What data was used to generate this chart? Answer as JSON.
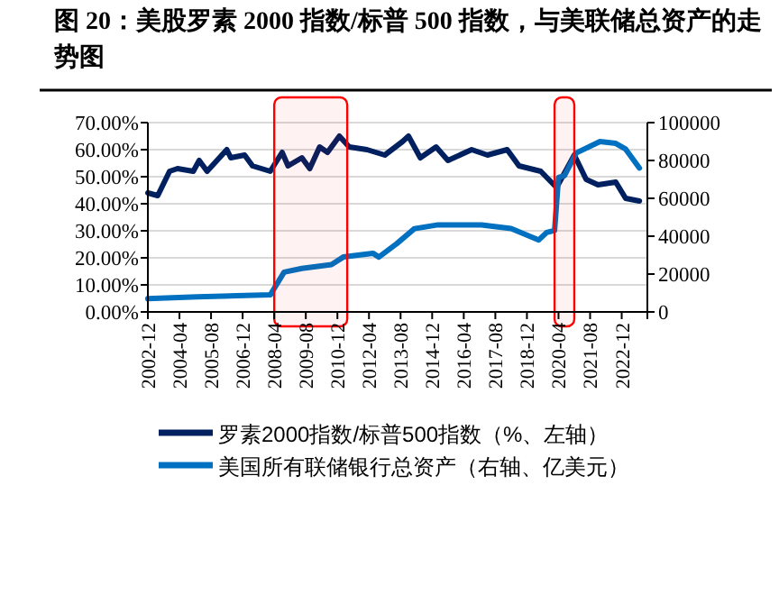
{
  "chart_data": {
    "type": "line",
    "title": "图 20：美股罗素 2000 指数/标普 500 指数，与美联储总资产的走势图",
    "grid": "y",
    "legend": "bottom",
    "line_style": "solid",
    "marker": "none",
    "xlim": [
      "2002-12",
      "2024-01"
    ],
    "xticks": [
      {
        "value": "2002-12",
        "label": "2002-12"
      },
      {
        "value": "2004-04",
        "label": "2004-04"
      },
      {
        "value": "2005-08",
        "label": "2005-08"
      },
      {
        "value": "2006-12",
        "label": "2006-12"
      },
      {
        "value": "2008-04",
        "label": "2008-04"
      },
      {
        "value": "2009-08",
        "label": "2009-08"
      },
      {
        "value": "2010-12",
        "label": "2010-12"
      },
      {
        "value": "2012-04",
        "label": "2012-04"
      },
      {
        "value": "2013-08",
        "label": "2013-08"
      },
      {
        "value": "2014-12",
        "label": "2014-12"
      },
      {
        "value": "2016-04",
        "label": "2016-04"
      },
      {
        "value": "2017-08",
        "label": "2017-08"
      },
      {
        "value": "2018-12",
        "label": "2018-12"
      },
      {
        "value": "2020-04",
        "label": "2020-04"
      },
      {
        "value": "2021-08",
        "label": "2021-08"
      },
      {
        "value": "2022-12",
        "label": "2022-12"
      }
    ],
    "ylim": [
      0,
      70
    ],
    "yticks": [
      {
        "value": 0,
        "label": "0.00%"
      },
      {
        "value": 10,
        "label": "10.00%"
      },
      {
        "value": 20,
        "label": "20.00%"
      },
      {
        "value": 30,
        "label": "30.00%"
      },
      {
        "value": 40,
        "label": "40.00%"
      },
      {
        "value": 50,
        "label": "50.00%"
      },
      {
        "value": 60,
        "label": "60.00%"
      },
      {
        "value": 70,
        "label": "70.00%"
      }
    ],
    "y2lim": [
      0,
      100000
    ],
    "y2ticks": [
      0,
      20000,
      40000,
      60000,
      80000,
      100000
    ],
    "bands": [
      {
        "axis": "x",
        "from": "2008-04",
        "to": "2011-05",
        "color": "#ff0000"
      },
      {
        "axis": "x",
        "from": "2020-02",
        "to": "2020-12",
        "color": "#ff0000"
      }
    ],
    "series": [
      {
        "name": "罗素2000指数/标普500指数（%、左轴）",
        "color": "#002060",
        "x": [
          "2002-12",
          "2003-05",
          "2003-11",
          "2004-03",
          "2004-11",
          "2005-02",
          "2005-06",
          "2005-11",
          "2006-04",
          "2006-06",
          "2007-01",
          "2007-05",
          "2008-02",
          "2008-08",
          "2008-11",
          "2009-06",
          "2009-10",
          "2010-03",
          "2010-07",
          "2011-01",
          "2011-06",
          "2012-03",
          "2012-12",
          "2013-09",
          "2013-12",
          "2014-06",
          "2015-02",
          "2015-08",
          "2016-08",
          "2017-04",
          "2018-02",
          "2018-08",
          "2019-07",
          "2020-03",
          "2020-12",
          "2021-06",
          "2021-12",
          "2022-09",
          "2023-02",
          "2023-09"
        ],
        "values": [
          44,
          43,
          52,
          53,
          52,
          56,
          52,
          56,
          60,
          57,
          58,
          54,
          52,
          59,
          54,
          57,
          53,
          61,
          59,
          65,
          61,
          60,
          58,
          63,
          65,
          57,
          61,
          56,
          60,
          58,
          60,
          54,
          52,
          46,
          58,
          49,
          47,
          48,
          42,
          41
        ]
      },
      {
        "name": "美国所有联储银行总资产（右轴、亿美元）",
        "color": "#0070c0",
        "axis": "y2",
        "x": [
          "2002-12",
          "2005-01",
          "2008-02",
          "2008-09",
          "2009-06",
          "2010-09",
          "2011-03",
          "2012-06",
          "2012-09",
          "2013-06",
          "2014-03",
          "2015-03",
          "2016-07",
          "2017-01",
          "2018-04",
          "2019-06",
          "2019-10",
          "2020-02",
          "2020-04",
          "2020-07",
          "2021-01",
          "2022-01",
          "2022-09",
          "2023-02",
          "2023-09"
        ],
        "values": [
          7000,
          8000,
          9000,
          21000,
          23000,
          25000,
          29000,
          31000,
          29000,
          36000,
          44000,
          46000,
          46000,
          46000,
          44000,
          38000,
          42000,
          43000,
          71000,
          72000,
          84000,
          90000,
          89000,
          86000,
          76000
        ]
      }
    ]
  }
}
